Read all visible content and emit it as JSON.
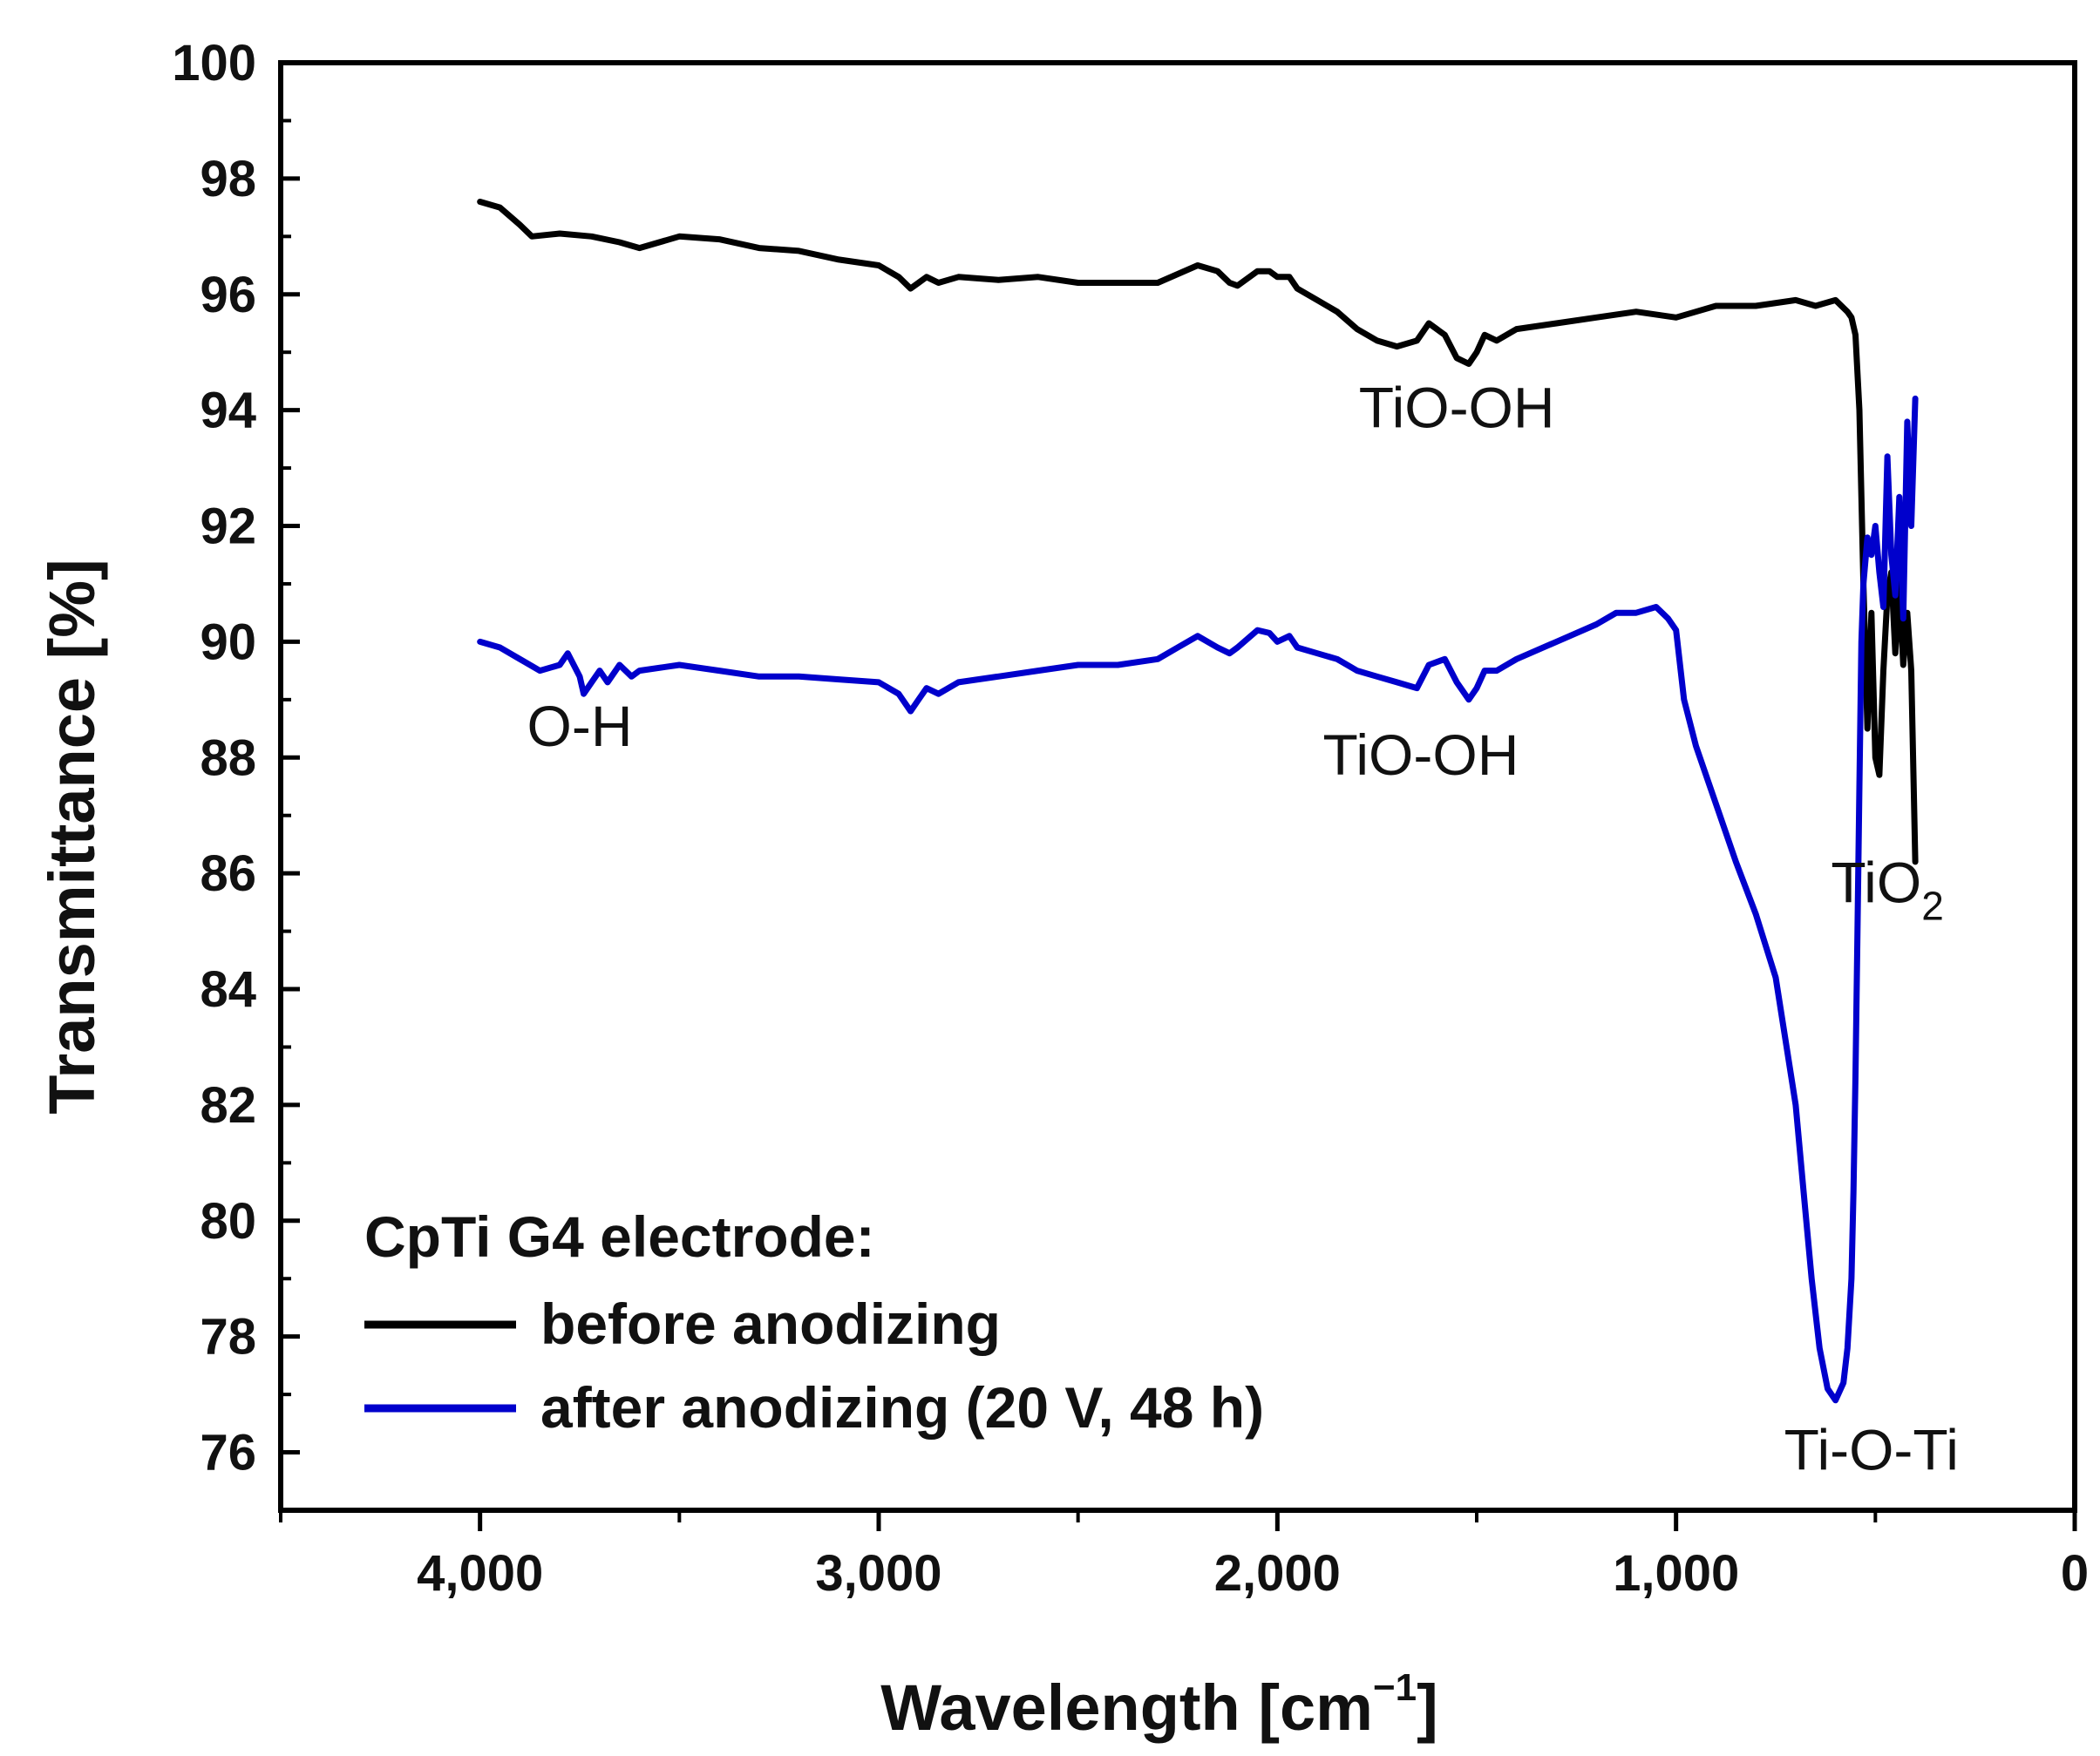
{
  "chart_data": {
    "type": "line",
    "xlabel": "Wavelength [cm",
    "xlabel_sup": "−1",
    "xlabel_end": "]",
    "ylabel": "Transmittance [%]",
    "xlim": [
      4500,
      0
    ],
    "ylim": [
      75,
      100
    ],
    "x_ticks": [
      4000,
      3000,
      2000,
      1000,
      0
    ],
    "x_tick_labels": [
      "4,000",
      "3,000",
      "2,000",
      "1,000",
      "0"
    ],
    "y_ticks": [
      76,
      78,
      80,
      82,
      84,
      86,
      88,
      90,
      92,
      94,
      96,
      98,
      100
    ],
    "y_tick_labels": [
      "76",
      "78",
      "80",
      "82",
      "84",
      "86",
      "88",
      "90",
      "92",
      "94",
      "96",
      "98",
      "100"
    ],
    "legend": {
      "title": "CpTi G4 electrode:",
      "placement": "bottom-left"
    },
    "series": [
      {
        "name": "before anodizing",
        "color": "#000000",
        "x": [
          4000,
          3950,
          3900,
          3870,
          3800,
          3720,
          3650,
          3600,
          3500,
          3400,
          3300,
          3200,
          3100,
          3000,
          2950,
          2920,
          2900,
          2880,
          2850,
          2800,
          2700,
          2600,
          2500,
          2400,
          2300,
          2250,
          2200,
          2150,
          2120,
          2100,
          2050,
          2020,
          2000,
          1970,
          1950,
          1900,
          1850,
          1800,
          1750,
          1700,
          1650,
          1620,
          1580,
          1550,
          1520,
          1500,
          1480,
          1450,
          1400,
          1300,
          1200,
          1100,
          1000,
          950,
          900,
          800,
          700,
          650,
          600,
          570,
          560,
          550,
          540,
          530,
          520,
          510,
          500,
          490,
          480,
          470,
          460,
          450,
          440,
          430,
          420,
          410,
          400
        ],
        "y": [
          97.6,
          97.5,
          97.2,
          97.0,
          97.05,
          97.0,
          96.9,
          96.8,
          97.0,
          96.95,
          96.8,
          96.75,
          96.6,
          96.5,
          96.3,
          96.1,
          96.2,
          96.3,
          96.2,
          96.3,
          96.25,
          96.3,
          96.2,
          96.2,
          96.2,
          96.35,
          96.5,
          96.4,
          96.2,
          96.15,
          96.4,
          96.4,
          96.3,
          96.3,
          96.1,
          95.9,
          95.7,
          95.4,
          95.2,
          95.1,
          95.2,
          95.5,
          95.3,
          94.9,
          94.8,
          95.0,
          95.3,
          95.2,
          95.4,
          95.5,
          95.6,
          95.7,
          95.6,
          95.7,
          95.8,
          95.8,
          95.9,
          95.8,
          95.9,
          95.7,
          95.6,
          95.3,
          94.0,
          91.0,
          88.5,
          90.5,
          88.0,
          87.7,
          89.5,
          90.8,
          91.2,
          89.8,
          91.0,
          89.6,
          90.5,
          89.5,
          86.2
        ]
      },
      {
        "name": "after anodizing (20 V, 48 h)",
        "color": "#0000cc",
        "x": [
          4000,
          3950,
          3900,
          3850,
          3800,
          3780,
          3750,
          3740,
          3720,
          3700,
          3680,
          3650,
          3620,
          3600,
          3500,
          3400,
          3300,
          3200,
          3100,
          3000,
          2950,
          2920,
          2900,
          2880,
          2850,
          2800,
          2700,
          2600,
          2500,
          2400,
          2300,
          2250,
          2200,
          2150,
          2120,
          2100,
          2050,
          2020,
          2000,
          1970,
          1950,
          1900,
          1850,
          1800,
          1750,
          1700,
          1650,
          1620,
          1580,
          1550,
          1520,
          1500,
          1480,
          1450,
          1400,
          1300,
          1200,
          1150,
          1100,
          1050,
          1020,
          1000,
          980,
          950,
          900,
          850,
          800,
          750,
          700,
          680,
          660,
          640,
          620,
          600,
          580,
          570,
          560,
          555,
          550,
          545,
          540,
          535,
          530,
          520,
          510,
          500,
          490,
          480,
          470,
          460,
          450,
          440,
          430,
          420,
          410,
          400
        ],
        "y": [
          90.0,
          89.9,
          89.7,
          89.5,
          89.6,
          89.8,
          89.4,
          89.1,
          89.3,
          89.5,
          89.3,
          89.6,
          89.4,
          89.5,
          89.6,
          89.5,
          89.4,
          89.4,
          89.35,
          89.3,
          89.1,
          88.8,
          89.0,
          89.2,
          89.1,
          89.3,
          89.4,
          89.5,
          89.6,
          89.6,
          89.7,
          89.9,
          90.1,
          89.9,
          89.8,
          89.9,
          90.2,
          90.15,
          90.0,
          90.1,
          89.9,
          89.8,
          89.7,
          89.5,
          89.4,
          89.3,
          89.2,
          89.6,
          89.7,
          89.3,
          89.0,
          89.2,
          89.5,
          89.5,
          89.7,
          90.0,
          90.3,
          90.5,
          90.5,
          90.6,
          90.4,
          90.2,
          89.0,
          88.2,
          87.2,
          86.2,
          85.3,
          84.2,
          82.0,
          80.5,
          79.0,
          77.8,
          77.1,
          76.9,
          77.2,
          77.8,
          79.0,
          80.5,
          82.5,
          85.0,
          87.5,
          90.0,
          91.0,
          91.8,
          91.5,
          92.0,
          91.2,
          90.6,
          93.2,
          91.5,
          90.8,
          92.5,
          90.4,
          93.8,
          92.0,
          94.2
        ]
      }
    ],
    "annotations": [
      {
        "text": "TiO-OH",
        "x": 1550,
        "y": 93.7,
        "anchor": "middle"
      },
      {
        "text": "O-H",
        "x": 3750,
        "y": 88.2,
        "anchor": "middle"
      },
      {
        "text": "TiO-OH",
        "x": 1640,
        "y": 87.7,
        "anchor": "middle"
      },
      {
        "text": "Ti-O-Ti",
        "x": 510,
        "y": 75.7,
        "anchor": "middle"
      }
    ],
    "tio2_label": {
      "text": "TiO",
      "sub": "2",
      "x": 470,
      "y": 85.5
    }
  }
}
